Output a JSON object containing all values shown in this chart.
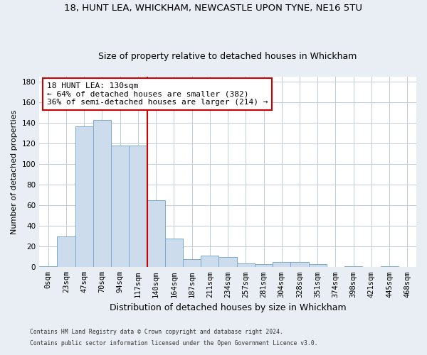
{
  "title1": "18, HUNT LEA, WHICKHAM, NEWCASTLE UPON TYNE, NE16 5TU",
  "title2": "Size of property relative to detached houses in Whickham",
  "xlabel": "Distribution of detached houses by size in Whickham",
  "ylabel": "Number of detached properties",
  "bar_labels": [
    "0sqm",
    "23sqm",
    "47sqm",
    "70sqm",
    "94sqm",
    "117sqm",
    "140sqm",
    "164sqm",
    "187sqm",
    "211sqm",
    "234sqm",
    "257sqm",
    "281sqm",
    "304sqm",
    "328sqm",
    "351sqm",
    "374sqm",
    "398sqm",
    "421sqm",
    "445sqm",
    "468sqm"
  ],
  "bar_values": [
    1,
    30,
    137,
    143,
    118,
    118,
    65,
    28,
    8,
    11,
    10,
    4,
    3,
    5,
    5,
    3,
    0,
    1,
    0,
    1,
    0
  ],
  "bar_color": "#ccdcec",
  "bar_edge_color": "#7aabcc",
  "vline_x": 5.5,
  "vline_color": "#cc0000",
  "annotation_text": "18 HUNT LEA: 130sqm\n← 64% of detached houses are smaller (382)\n36% of semi-detached houses are larger (214) →",
  "annotation_box_color": "#ffffff",
  "annotation_box_edge_color": "#cc0000",
  "ylim": [
    0,
    185
  ],
  "yticks": [
    0,
    20,
    40,
    60,
    80,
    100,
    120,
    140,
    160,
    180
  ],
  "footer1": "Contains HM Land Registry data © Crown copyright and database right 2024.",
  "footer2": "Contains public sector information licensed under the Open Government Licence v3.0.",
  "bg_color": "#e8eef4",
  "plot_bg_color": "#ffffff",
  "grid_color": "#c0ccd8",
  "title1_fontsize": 9.5,
  "title2_fontsize": 9,
  "ylabel_fontsize": 8,
  "xlabel_fontsize": 9,
  "tick_fontsize": 7.5,
  "annotation_fontsize": 8
}
